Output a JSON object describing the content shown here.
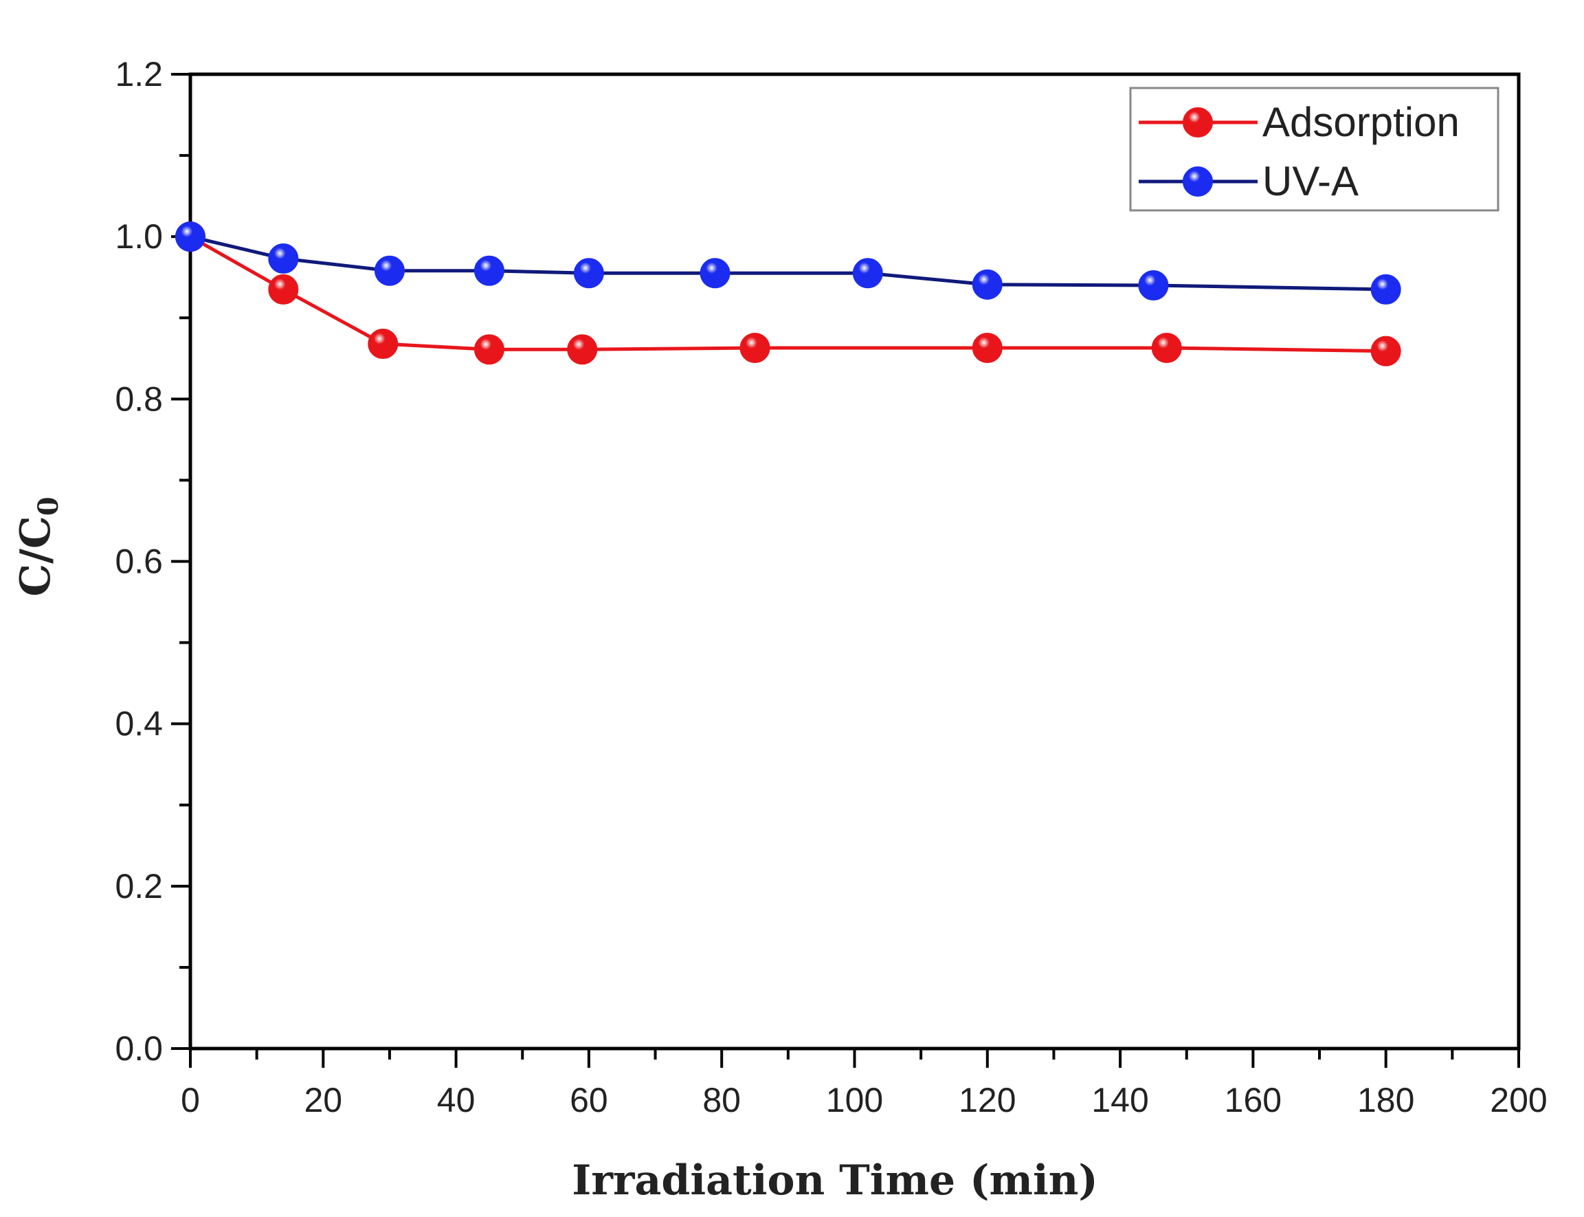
{
  "chart_data": {
    "type": "line",
    "title": "",
    "xlabel": "Irradiation Time (min)",
    "ylabel": {
      "base": "C/C",
      "subscript": "0"
    },
    "xlim": [
      0,
      200
    ],
    "ylim": [
      0.0,
      1.2
    ],
    "x_ticks": [
      "0",
      "20",
      "40",
      "60",
      "80",
      "100",
      "120",
      "140",
      "160",
      "180",
      "200"
    ],
    "y_ticks": [
      "0.0",
      "0.2",
      "0.4",
      "0.6",
      "0.8",
      "1.0",
      "1.2"
    ],
    "grid": false,
    "legend_position": "top-right",
    "series": [
      {
        "name": "Adsorption",
        "color": "#e8161b",
        "line_color": "#e8161b",
        "x": [
          0,
          14,
          29,
          45,
          59,
          85,
          120,
          147,
          180
        ],
        "y": [
          1.0,
          0.935,
          0.868,
          0.861,
          0.861,
          0.863,
          0.863,
          0.863,
          0.859
        ]
      },
      {
        "name": "UV-A",
        "color": "#1b2cf0",
        "line_color": "#101a7a",
        "x": [
          0,
          14,
          30,
          45,
          60,
          79,
          102,
          120,
          145,
          180
        ],
        "y": [
          1.0,
          0.973,
          0.958,
          0.958,
          0.955,
          0.955,
          0.955,
          0.941,
          0.94,
          0.935
        ]
      }
    ]
  }
}
